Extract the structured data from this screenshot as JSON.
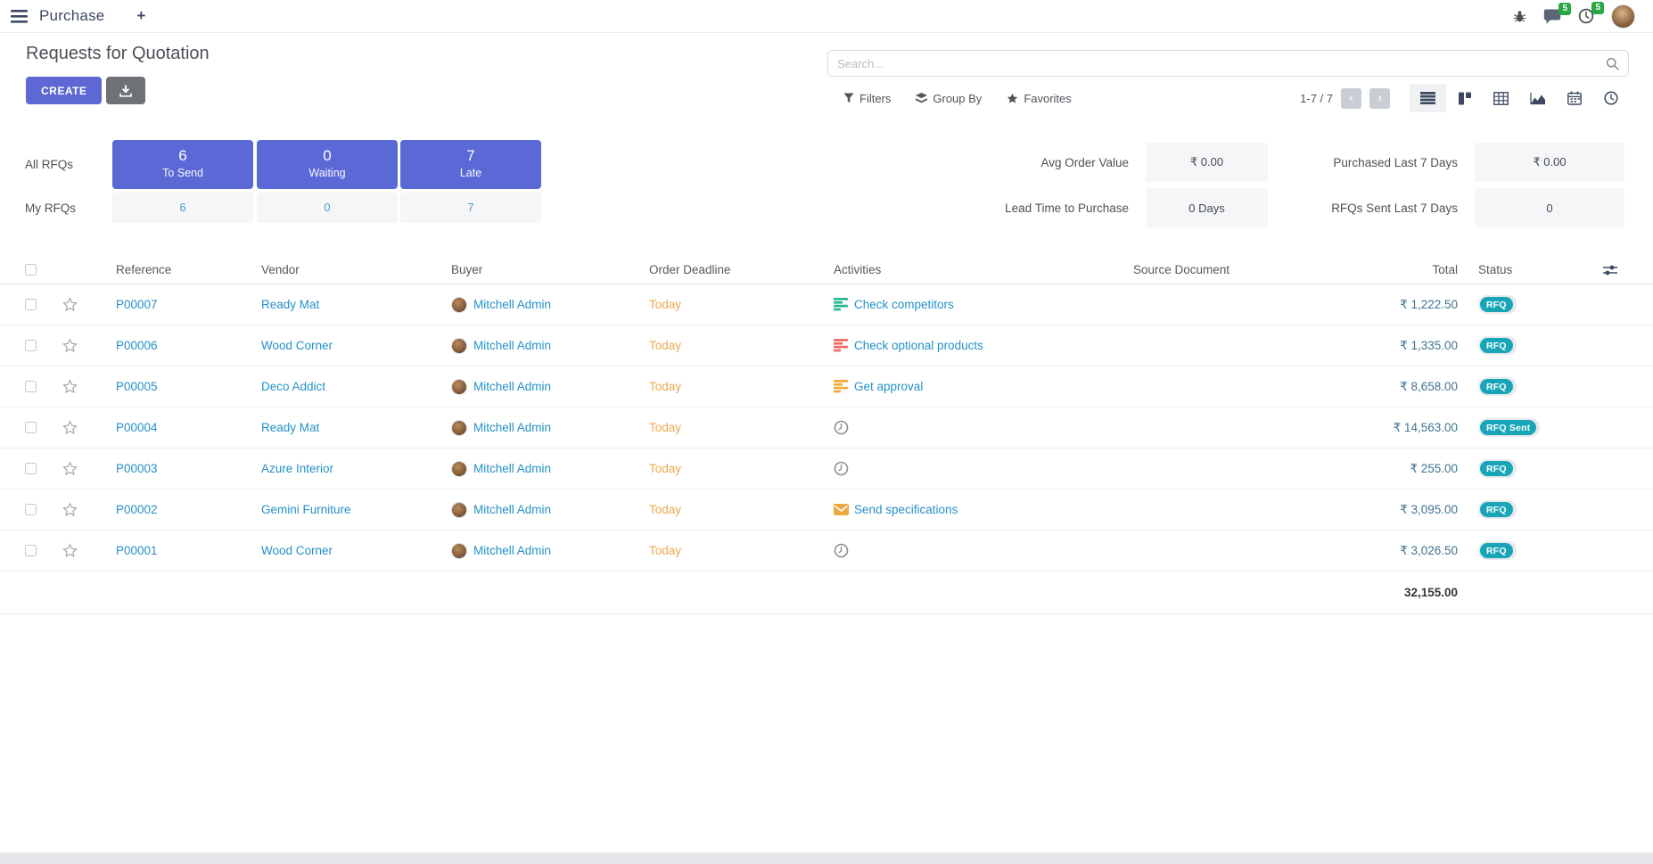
{
  "topbar": {
    "app": "Purchase",
    "plus": "+",
    "messages_badge": "5",
    "activities_badge": "5"
  },
  "control": {
    "title": "Requests for Quotation",
    "create": "CREATE",
    "search_placeholder": "Search...",
    "filters": "Filters",
    "group_by": "Group By",
    "favorites": "Favorites",
    "pager": "1-7 / 7",
    "prev": "‹",
    "next": "›"
  },
  "dashboard": {
    "all_label": "All RFQs",
    "my_label": "My RFQs",
    "cards": [
      {
        "count": "6",
        "label": "To Send",
        "my": "6"
      },
      {
        "count": "0",
        "label": "Waiting",
        "my": "0"
      },
      {
        "count": "7",
        "label": "Late",
        "my": "7"
      }
    ],
    "stats": [
      {
        "label": "Avg Order Value",
        "value": "₹ 0.00"
      },
      {
        "label": "Lead Time to Purchase",
        "value": "0 Days"
      },
      {
        "label": "Purchased Last 7 Days",
        "value": "₹ 0.00"
      },
      {
        "label": "RFQs Sent Last 7 Days",
        "value": "0"
      }
    ]
  },
  "table": {
    "headers": {
      "reference": "Reference",
      "vendor": "Vendor",
      "buyer": "Buyer",
      "deadline": "Order Deadline",
      "activities": "Activities",
      "source": "Source Document",
      "total": "Total",
      "status": "Status"
    },
    "rows": [
      {
        "reference": "P00007",
        "vendor": "Ready Mat",
        "buyer": "Mitchell Admin",
        "deadline": "Today",
        "activity_icon": "list-green",
        "activity_label": "Check competitors",
        "source": "",
        "total": "₹ 1,222.50",
        "status": "RFQ"
      },
      {
        "reference": "P00006",
        "vendor": "Wood Corner",
        "buyer": "Mitchell Admin",
        "deadline": "Today",
        "activity_icon": "list-red",
        "activity_label": "Check optional products",
        "source": "",
        "total": "₹ 1,335.00",
        "status": "RFQ"
      },
      {
        "reference": "P00005",
        "vendor": "Deco Addict",
        "buyer": "Mitchell Admin",
        "deadline": "Today",
        "activity_icon": "list-yellow",
        "activity_label": "Get approval",
        "source": "",
        "total": "₹ 8,658.00",
        "status": "RFQ"
      },
      {
        "reference": "P00004",
        "vendor": "Ready Mat",
        "buyer": "Mitchell Admin",
        "deadline": "Today",
        "activity_icon": "clock",
        "activity_label": "",
        "source": "",
        "total": "₹ 14,563.00",
        "status": "RFQ Sent"
      },
      {
        "reference": "P00003",
        "vendor": "Azure Interior",
        "buyer": "Mitchell Admin",
        "deadline": "Today",
        "activity_icon": "clock",
        "activity_label": "",
        "source": "",
        "total": "₹ 255.00",
        "status": "RFQ"
      },
      {
        "reference": "P00002",
        "vendor": "Gemini Furniture",
        "buyer": "Mitchell Admin",
        "deadline": "Today",
        "activity_icon": "envelope",
        "activity_label": "Send specifications",
        "source": "",
        "total": "₹ 3,095.00",
        "status": "RFQ"
      },
      {
        "reference": "P00001",
        "vendor": "Wood Corner",
        "buyer": "Mitchell Admin",
        "deadline": "Today",
        "activity_icon": "clock",
        "activity_label": "",
        "source": "",
        "total": "₹ 3,026.50",
        "status": "RFQ"
      }
    ],
    "footer_total": "32,155.00"
  },
  "colors": {
    "accent": "#5a69d6",
    "link": "#2491c7",
    "deadline_warning": "#eca84e",
    "status_badge": "#18a5b8",
    "notification_green": "#28a745"
  }
}
